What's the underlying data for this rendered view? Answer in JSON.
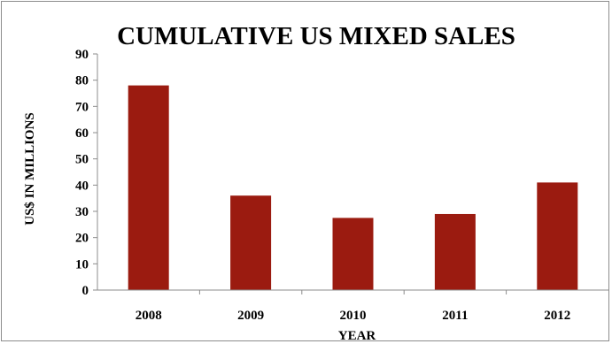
{
  "chart_data": {
    "type": "bar",
    "title": "CUMULATIVE US MIXED SALES",
    "xlabel": "YEAR",
    "ylabel": "US$ IN MILLIONS",
    "categories": [
      "2008",
      "2009",
      "2010",
      "2011",
      "2012"
    ],
    "values": [
      78,
      36,
      27.5,
      29,
      41
    ],
    "ylim": [
      0,
      90
    ],
    "yticks": [
      0,
      10,
      20,
      30,
      40,
      50,
      60,
      70,
      80,
      90
    ],
    "grid": false,
    "legend": "none",
    "colors": {
      "bar": "#9b1b10",
      "axis": "#8c8c8c",
      "text": "#000000"
    }
  }
}
